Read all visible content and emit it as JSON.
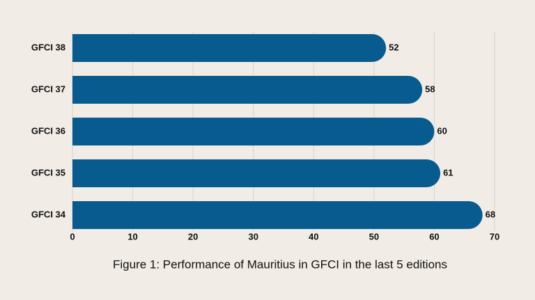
{
  "chart_data": {
    "type": "bar",
    "orientation": "horizontal",
    "title": "Figure 1: Performance of Mauritius in GFCI in the last 5 editions",
    "categories": [
      "GFCI 38",
      "GFCI 37",
      "GFCI 36",
      "GFCI 35",
      "GFCI 34"
    ],
    "values": [
      52,
      58,
      60,
      61,
      68
    ],
    "color": "#075b8f",
    "xlim": [
      0,
      70
    ],
    "xticks": [
      0,
      10,
      20,
      30,
      40,
      50,
      60,
      70
    ],
    "grid": true
  }
}
